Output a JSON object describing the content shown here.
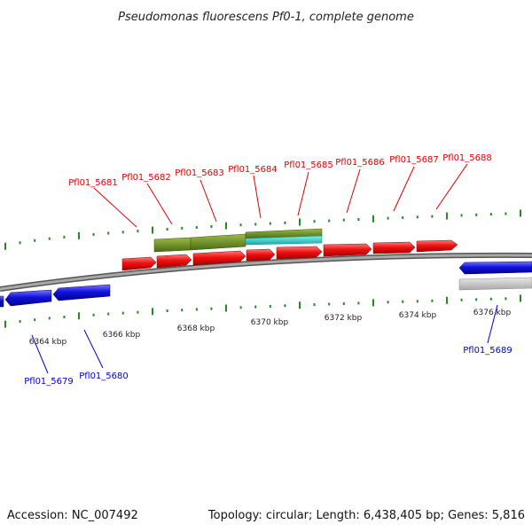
{
  "title": "Pseudomonas fluorescens Pf0-1, complete genome",
  "footer": {
    "accession": "Accession: NC_007492",
    "topology": "Topology: circular; Length: 6,438,405 bp; Genes: 5,816"
  },
  "colors": {
    "forward_gene": "#ee1111",
    "reverse_gene": "#1111dd",
    "pseudo_gene": "#c0c0c0",
    "olive_feature": "#6b8e23",
    "cyan_feature": "#22cccc",
    "backbone": "#888888",
    "tick": "#228b22",
    "fwd_label": "#dd0000",
    "rev_label": "#0000cc"
  },
  "ruler_labels": [
    {
      "text": "6364 kbp"
    },
    {
      "text": "6366 kbp"
    },
    {
      "text": "6368 kbp"
    },
    {
      "text": "6370 kbp"
    },
    {
      "text": "6372 kbp"
    },
    {
      "text": "6374 kbp"
    },
    {
      "text": "6376 kbp"
    }
  ],
  "forward_genes": [
    {
      "label": "Pfl01_5681"
    },
    {
      "label": "Pfl01_5682"
    },
    {
      "label": "Pfl01_5683"
    },
    {
      "label": "Pfl01_5684"
    },
    {
      "label": "Pfl01_5685"
    },
    {
      "label": "Pfl01_5686"
    },
    {
      "label": "Pfl01_5687"
    },
    {
      "label": "Pfl01_5688"
    }
  ],
  "reverse_genes": [
    {
      "label": "Pfl01_5679"
    },
    {
      "label": "Pfl01_5680"
    },
    {
      "label": "Pfl01_5689"
    }
  ]
}
